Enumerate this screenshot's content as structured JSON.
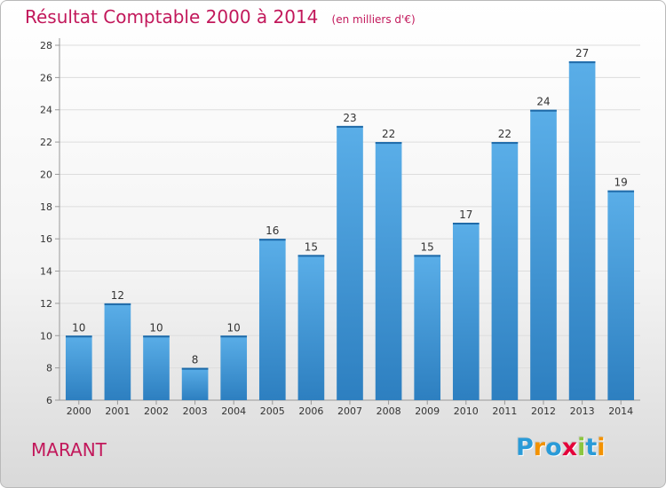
{
  "header": {
    "title": "Résultat Comptable 2000 à 2014",
    "unit": "(en milliers d'€)"
  },
  "footer": {
    "commune": "MARANT",
    "brand": "Proxiti",
    "brand_letters": [
      {
        "ch": "P",
        "color": "#2a9bd8"
      },
      {
        "ch": "r",
        "color": "#f39200"
      },
      {
        "ch": "o",
        "color": "#2a9bd8"
      },
      {
        "ch": "x",
        "color": "#e4003a"
      },
      {
        "ch": "i",
        "color": "#8cc63f"
      },
      {
        "ch": "t",
        "color": "#2a9bd8"
      },
      {
        "ch": "i",
        "color": "#f39200"
      }
    ]
  },
  "colors": {
    "title": "#c2185b",
    "bar_top": "#5aaee8",
    "bar_bottom": "#2d7fc0",
    "axis": "#999999",
    "grid": "#dddddd"
  },
  "chart_data": {
    "type": "bar",
    "title": "Résultat Comptable 2000 à 2014",
    "subtitle": "(en milliers d'€)",
    "xlabel": "",
    "ylabel": "",
    "categories": [
      "2000",
      "2001",
      "2002",
      "2003",
      "2004",
      "2005",
      "2006",
      "2007",
      "2008",
      "2009",
      "2010",
      "2011",
      "2012",
      "2013",
      "2014"
    ],
    "values": [
      10,
      12,
      10,
      8,
      10,
      16,
      15,
      23,
      22,
      15,
      17,
      22,
      24,
      27,
      19
    ],
    "ylim": [
      6,
      28
    ],
    "yticks": [
      6,
      8,
      10,
      12,
      14,
      16,
      18,
      20,
      22,
      24,
      26,
      28
    ],
    "grid": true,
    "data_labels": true
  }
}
